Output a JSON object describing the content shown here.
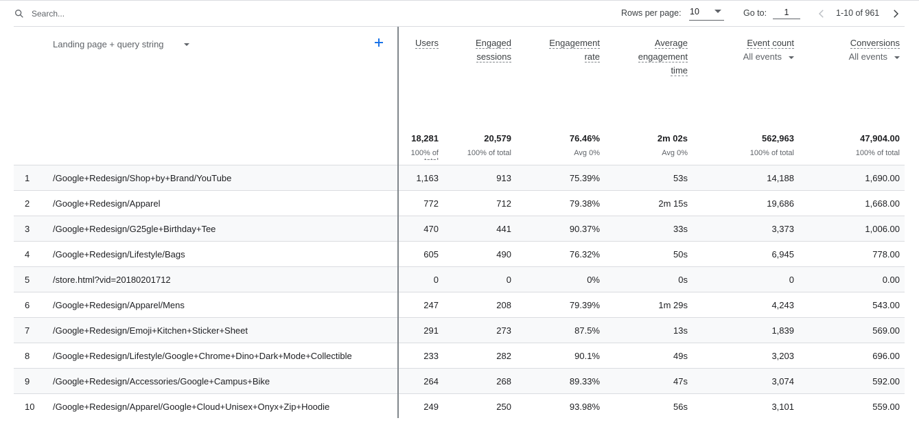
{
  "toolbar": {
    "search_placeholder": "Search...",
    "rows_per_page_label": "Rows per page:",
    "rows_per_page_value": "10",
    "goto_label": "Go to:",
    "goto_value": "1",
    "range_text": "1-10 of 961",
    "icons": {
      "search": "search-icon",
      "prev": "chevron-left-icon",
      "next": "chevron-right-icon"
    }
  },
  "table": {
    "dimension_header": "Landing page + query string",
    "columns": [
      {
        "title": [
          "Users"
        ],
        "sub": "",
        "total": "18,281",
        "total_sub": "100% of total"
      },
      {
        "title": [
          "Engaged",
          "sessions"
        ],
        "sub": "",
        "total": "20,579",
        "total_sub": "100% of total"
      },
      {
        "title": [
          "Engagement",
          "rate"
        ],
        "sub": "",
        "total": "76.46%",
        "total_sub": "Avg 0%"
      },
      {
        "title": [
          "Average",
          "engagement",
          "time"
        ],
        "sub": "",
        "total": "2m 02s",
        "total_sub": "Avg 0%"
      },
      {
        "title": [
          "Event count"
        ],
        "sub": "All events",
        "total": "562,963",
        "total_sub": "100% of total"
      },
      {
        "title": [
          "Conversions"
        ],
        "sub": "All events",
        "total": "47,904.00",
        "total_sub": "100% of total"
      }
    ],
    "rows": [
      {
        "n": "1",
        "page": "/Google+Redesign/Shop+by+Brand/YouTube",
        "v": [
          "1,163",
          "913",
          "75.39%",
          "53s",
          "14,188",
          "1,690.00"
        ]
      },
      {
        "n": "2",
        "page": "/Google+Redesign/Apparel",
        "v": [
          "772",
          "712",
          "79.38%",
          "2m 15s",
          "19,686",
          "1,668.00"
        ]
      },
      {
        "n": "3",
        "page": "/Google+Redesign/G25gle+Birthday+Tee",
        "v": [
          "470",
          "441",
          "90.37%",
          "33s",
          "3,373",
          "1,006.00"
        ]
      },
      {
        "n": "4",
        "page": "/Google+Redesign/Lifestyle/Bags",
        "v": [
          "605",
          "490",
          "76.32%",
          "50s",
          "6,945",
          "778.00"
        ]
      },
      {
        "n": "5",
        "page": "/store.html?vid=20180201712",
        "v": [
          "0",
          "0",
          "0%",
          "0s",
          "0",
          "0.00"
        ]
      },
      {
        "n": "6",
        "page": "/Google+Redesign/Apparel/Mens",
        "v": [
          "247",
          "208",
          "79.39%",
          "1m 29s",
          "4,243",
          "543.00"
        ]
      },
      {
        "n": "7",
        "page": "/Google+Redesign/Emoji+Kitchen+Sticker+Sheet",
        "v": [
          "291",
          "273",
          "87.5%",
          "13s",
          "1,839",
          "569.00"
        ]
      },
      {
        "n": "8",
        "page": "/Google+Redesign/Lifestyle/Google+Chrome+Dino+Dark+Mode+Collectible",
        "v": [
          "233",
          "282",
          "90.1%",
          "49s",
          "3,203",
          "696.00"
        ]
      },
      {
        "n": "9",
        "page": "/Google+Redesign/Accessories/Google+Campus+Bike",
        "v": [
          "264",
          "268",
          "89.33%",
          "47s",
          "3,074",
          "592.00"
        ]
      },
      {
        "n": "10",
        "page": "/Google+Redesign/Apparel/Google+Cloud+Unisex+Onyx+Zip+Hoodie",
        "v": [
          "249",
          "250",
          "93.98%",
          "56s",
          "3,101",
          "559.00"
        ]
      }
    ]
  },
  "colors": {
    "shade": "#f8f9fa",
    "border": "#dadce0",
    "divider": "#80868b",
    "accent": "#1a73e8"
  }
}
